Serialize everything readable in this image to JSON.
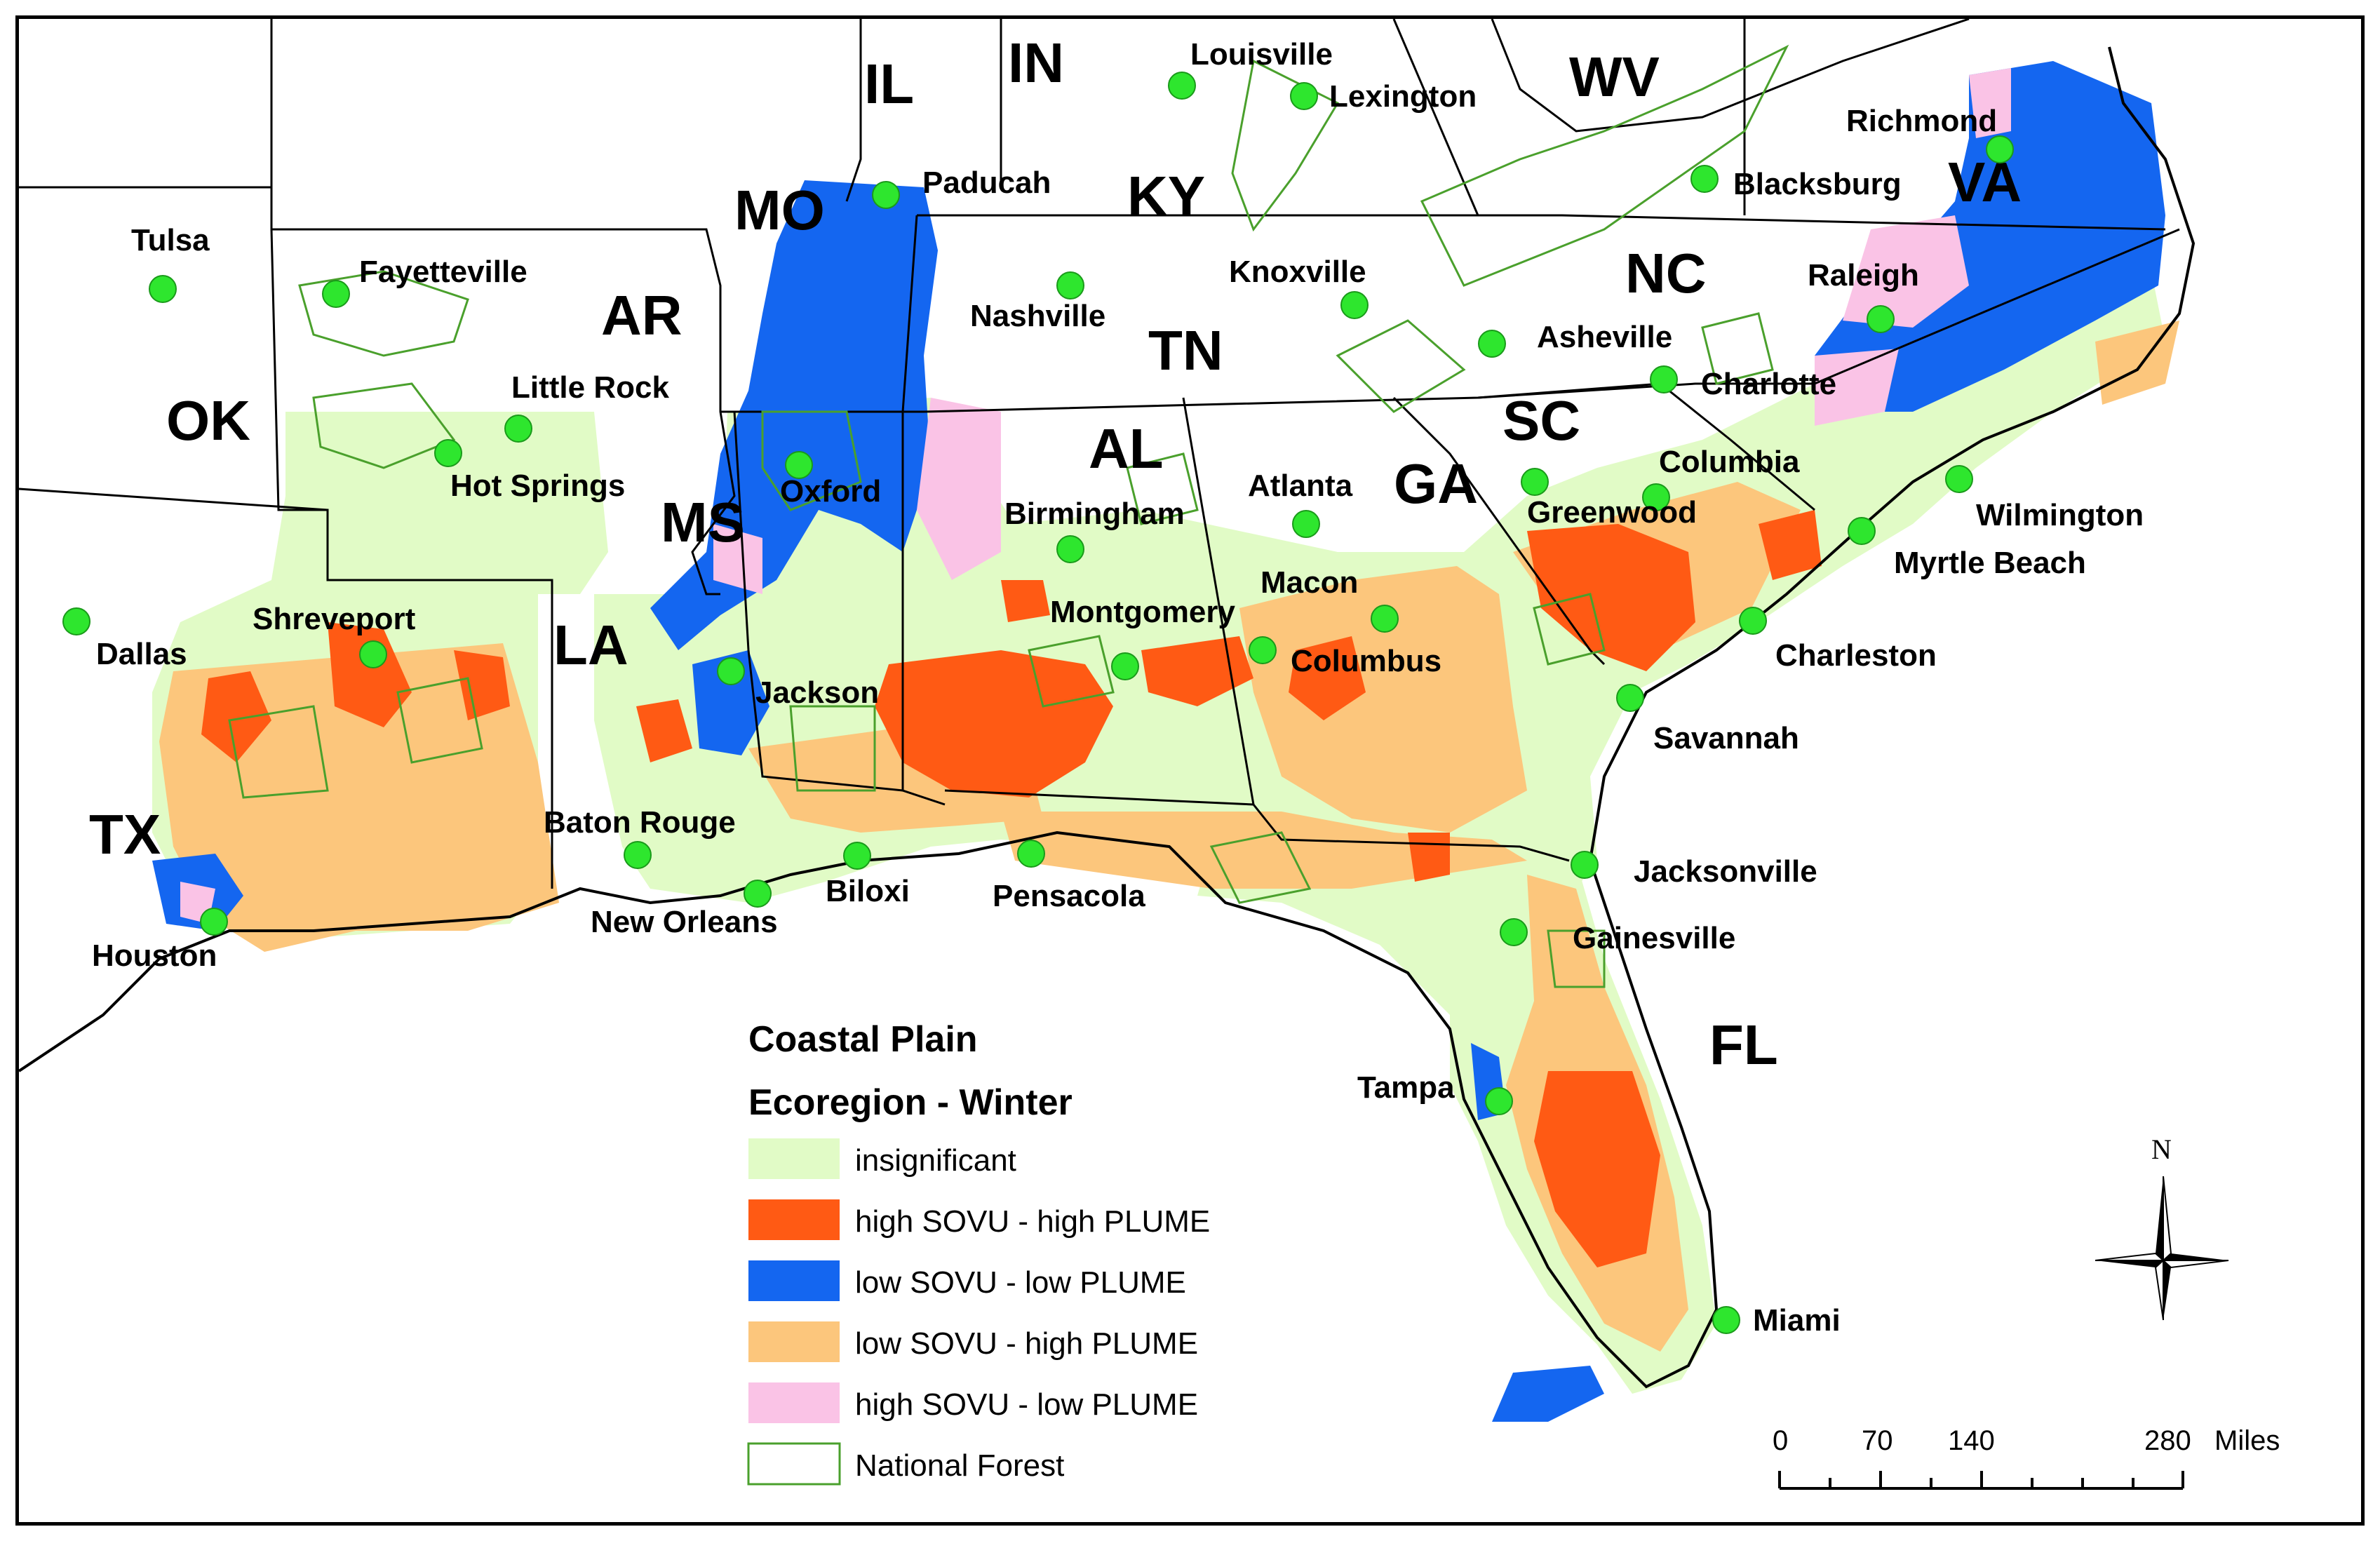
{
  "legend": {
    "title_line1": "Coastal Plain",
    "title_line2": "Ecoregion - Winter",
    "items": [
      {
        "label": "insignificant",
        "color": "#e1fbc6",
        "kind": "fill"
      },
      {
        "label": "high SOVU - high PLUME",
        "color": "#ff5a14",
        "kind": "fill"
      },
      {
        "label": "low SOVU - low PLUME",
        "color": "#1466f0",
        "kind": "fill"
      },
      {
        "label": "low SOVU - high PLUME",
        "color": "#fcc67c",
        "kind": "fill"
      },
      {
        "label": "high SOVU - low PLUME",
        "color": "#fac3e6",
        "kind": "fill"
      },
      {
        "label": "National Forest",
        "color": "#4aa02c",
        "kind": "outline"
      }
    ]
  },
  "states": [
    "IL",
    "IN",
    "WV",
    "MO",
    "KY",
    "VA",
    "AR",
    "NC",
    "TN",
    "OK",
    "SC",
    "AL",
    "GA",
    "MS",
    "LA",
    "TX",
    "FL"
  ],
  "cities": [
    "Louisville",
    "Lexington",
    "Paducah",
    "Richmond",
    "Blacksburg",
    "Tulsa",
    "Fayetteville",
    "Nashville",
    "Knoxville",
    "Raleigh",
    "Asheville",
    "Little Rock",
    "Charlotte",
    "Hot Springs",
    "Oxford",
    "Columbia",
    "Atlanta",
    "Greenwood",
    "Birmingham",
    "Wilmington",
    "Myrtle Beach",
    "Macon",
    "Shreveport",
    "Dallas",
    "Montgomery",
    "Columbus",
    "Charleston",
    "Jackson",
    "Savannah",
    "Baton Rouge",
    "Biloxi",
    "Jacksonville",
    "Pensacola",
    "New Orleans",
    "Houston",
    "Gainesville",
    "Tampa",
    "Miami"
  ],
  "city_color": "#2ee62e",
  "north_arrow": {
    "label": "N"
  },
  "scale_bar": {
    "ticks": [
      "0",
      "70",
      "140",
      "280"
    ],
    "unit": "Miles"
  }
}
